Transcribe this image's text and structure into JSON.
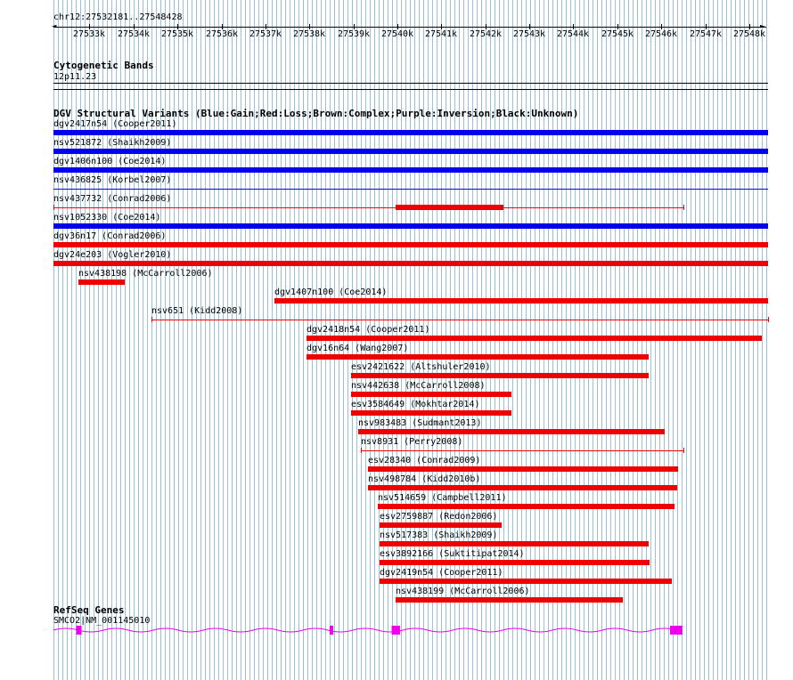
{
  "browser": {
    "coordinate_text": "chr12:27532181..27548428",
    "ruler_ticks": [
      "27533k",
      "27534k",
      "27535k",
      "27536k",
      "27537k",
      "27538k",
      "27539k",
      "27540k",
      "27541k",
      "27542k",
      "27543k",
      "27544k",
      "27545k",
      "27546k",
      "27547k",
      "27548k"
    ]
  },
  "colors": {
    "gain": "#0000ee",
    "loss": "#ee0000",
    "gene": "#ee00ee",
    "grid": "#9bbfd6"
  },
  "cytoband_track": {
    "title": "Cytogenetic Bands",
    "band_label": "12p11.23"
  },
  "dgv_track": {
    "title": "DGV Structural Variants (Blue:Gain;Red:Loss;Brown:Complex;Purple:Inversion;Black:Unknown)",
    "variants": [
      {
        "label": "dgv2417n54 (Cooper2011)",
        "type": "gain",
        "style": "thick",
        "start": 27532181,
        "end": 27548428
      },
      {
        "label": "nsv521872 (Shaikh2009)",
        "type": "gain",
        "style": "thick",
        "start": 27532181,
        "end": 27548428
      },
      {
        "label": "dgv1406n100 (Coe2014)",
        "type": "gain",
        "style": "thick",
        "start": 27532181,
        "end": 27548428
      },
      {
        "label": "nsv436825 (Korbel2007)",
        "type": "gain",
        "style": "thin",
        "start": 27532181,
        "end": 27548428
      },
      {
        "label": "nsv437732 (Conrad2006)",
        "type": "loss",
        "style": "interval",
        "start": 27532181,
        "end": 27546500,
        "inner_start": 27539950,
        "inner_end": 27542400
      },
      {
        "label": "nsv1052330 (Coe2014)",
        "type": "gain",
        "style": "thick",
        "start": 27532181,
        "end": 27548428
      },
      {
        "label": "dgv36n17 (Conrad2006)",
        "type": "loss",
        "style": "thick",
        "start": 27532181,
        "end": 27548428
      },
      {
        "label": "dgv24e203 (Vogler2010)",
        "type": "loss",
        "style": "thick",
        "start": 27532181,
        "end": 27548428
      },
      {
        "label": "nsv438198 (McCarroll2006)",
        "type": "loss",
        "style": "thick",
        "start": 27532740,
        "end": 27533800
      },
      {
        "label": "dgv1407n100 (Coe2014)",
        "type": "loss",
        "style": "thick",
        "start": 27537200,
        "end": 27548428
      },
      {
        "label": "nsv651 (Kidd2008)",
        "type": "loss",
        "style": "intervalthin",
        "start": 27534400,
        "end": 27548428
      },
      {
        "label": "dgv2418n54 (Cooper2011)",
        "type": "loss",
        "style": "thick",
        "start": 27537930,
        "end": 27548280
      },
      {
        "label": "dgv16n64 (Wang2007)",
        "type": "loss",
        "style": "thick",
        "start": 27537930,
        "end": 27545710
      },
      {
        "label": "esv2421622 (Altshuler2010)",
        "type": "loss",
        "style": "thick",
        "start": 27538940,
        "end": 27545710
      },
      {
        "label": "nsv442638 (McCarroll2008)",
        "type": "loss",
        "style": "thick",
        "start": 27538940,
        "end": 27542580
      },
      {
        "label": "esv3584649 (Mokhtar2014)",
        "type": "loss",
        "style": "thick",
        "start": 27538940,
        "end": 27542580
      },
      {
        "label": "nsv983483 (Sudmant2013)",
        "type": "loss",
        "style": "thick",
        "start": 27539100,
        "end": 27546060
      },
      {
        "label": "nsv8931 (Perry2008)",
        "type": "loss",
        "style": "intervalthin",
        "start": 27539160,
        "end": 27546500
      },
      {
        "label": "esv28340 (Conrad2009)",
        "type": "loss",
        "style": "thick",
        "start": 27539340,
        "end": 27546380
      },
      {
        "label": "nsv498784 (Kidd2010b)",
        "type": "loss",
        "style": "thick",
        "start": 27539340,
        "end": 27546360
      },
      {
        "label": "nsv514659 (Campbell2011)",
        "type": "loss",
        "style": "thick",
        "start": 27539550,
        "end": 27546300
      },
      {
        "label": "esv2759887 (Redon2006)",
        "type": "loss",
        "style": "thick",
        "start": 27539600,
        "end": 27542380
      },
      {
        "label": "nsv517383 (Shaikh2009)",
        "type": "loss",
        "style": "thick",
        "start": 27539600,
        "end": 27545710
      },
      {
        "label": "esv3892166 (Suktitipat2014)",
        "type": "loss",
        "style": "thick",
        "start": 27539600,
        "end": 27545730
      },
      {
        "label": "dgv2419n54 (Cooper2011)",
        "type": "loss",
        "style": "thick",
        "start": 27539600,
        "end": 27546250
      },
      {
        "label": "nsv438199 (McCarroll2006)",
        "type": "loss",
        "style": "thick",
        "start": 27539950,
        "end": 27545110
      }
    ]
  },
  "refseq_track": {
    "title": "RefSeq Genes",
    "gene_label": "SMCO2|NM_001145010",
    "gene_start": 27532181,
    "gene_end": 27546600,
    "exons": [
      {
        "start": 27532700,
        "end": 27532820
      },
      {
        "start": 27538460,
        "end": 27538540
      },
      {
        "start": 27539870,
        "end": 27540060
      },
      {
        "start": 27546200,
        "end": 27546480
      }
    ]
  }
}
